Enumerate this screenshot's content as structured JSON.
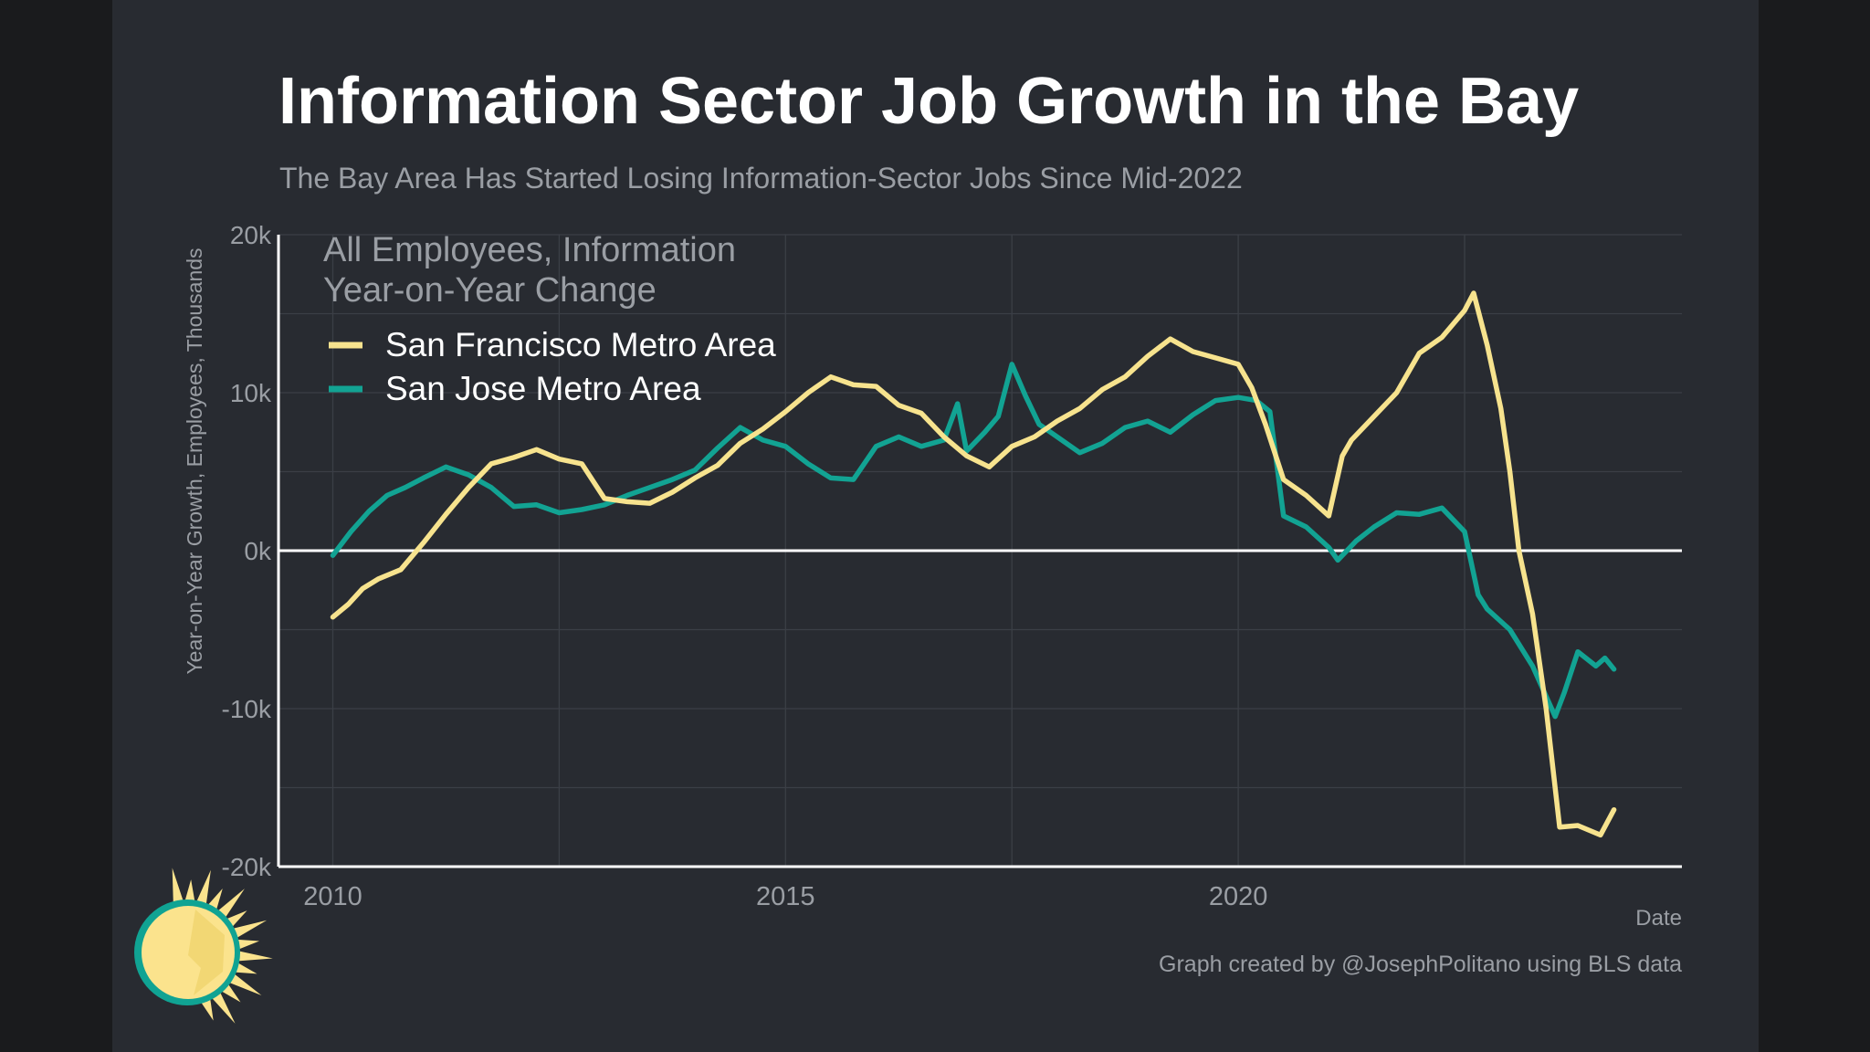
{
  "colors": {
    "background": "#282b31",
    "outer": "#1a1b1d",
    "grid": "#3b3f46",
    "zero_line": "#ffffff",
    "axis": "#ffffff",
    "text_muted": "#9a9ea4",
    "sf": "#f7e38e",
    "sj": "#12a393",
    "logo_sun": "#fbe38d",
    "logo_ring": "#10a393"
  },
  "chart_data": {
    "type": "line",
    "title": "Information Sector Job Growth in the Bay",
    "subtitle": "The Bay Area Has Started Losing Information-Sector Jobs Since Mid-2022",
    "xlabel": "Date",
    "ylabel": "Year-on-Year Growth, Employees, Thousands",
    "caption": "Graph created by @JosephPolitano using BLS data",
    "xlim": [
      2009.4,
      2024.9
    ],
    "ylim": [
      -20,
      20
    ],
    "x_ticks": [
      2010,
      2015,
      2020
    ],
    "x_tick_labels": [
      "2010",
      "2015",
      "2020"
    ],
    "y_ticks": [
      20,
      10,
      0,
      -10,
      -20
    ],
    "y_tick_labels": [
      "20k",
      "10k",
      "0k",
      "-10k",
      "-20k"
    ],
    "x_gridlines": [
      2010,
      2012.5,
      2015,
      2017.5,
      2020,
      2022.5
    ],
    "y_gridlines": [
      20,
      15,
      10,
      5,
      -5,
      -10,
      -15
    ],
    "legend": {
      "title_line1": "All Employees, Information",
      "title_line2": "Year-on-Year Change",
      "placement": "top-left"
    },
    "series": [
      {
        "name": "San Francisco Metro Area",
        "color": "#f7e38e",
        "x": [
          2010.0,
          2010.17,
          2010.33,
          2010.5,
          2010.75,
          2011.0,
          2011.25,
          2011.5,
          2011.75,
          2012.0,
          2012.25,
          2012.5,
          2012.75,
          2013.0,
          2013.25,
          2013.5,
          2013.75,
          2014.0,
          2014.25,
          2014.5,
          2014.75,
          2015.0,
          2015.25,
          2015.5,
          2015.75,
          2016.0,
          2016.25,
          2016.5,
          2016.75,
          2017.0,
          2017.25,
          2017.5,
          2017.75,
          2018.0,
          2018.25,
          2018.5,
          2018.75,
          2019.0,
          2019.25,
          2019.5,
          2019.75,
          2020.0,
          2020.15,
          2020.3,
          2020.5,
          2020.75,
          2021.0,
          2021.15,
          2021.25,
          2021.5,
          2021.75,
          2022.0,
          2022.25,
          2022.5,
          2022.6,
          2022.75,
          2022.9,
          2023.0,
          2023.1,
          2023.25,
          2023.4,
          2023.55,
          2023.75,
          2024.0,
          2024.15
        ],
        "values": [
          -4.2,
          -3.4,
          -2.4,
          -1.8,
          -1.2,
          0.5,
          2.3,
          4.0,
          5.5,
          5.9,
          6.4,
          5.8,
          5.5,
          3.3,
          3.1,
          3.0,
          3.7,
          4.6,
          5.4,
          6.8,
          7.7,
          8.8,
          10.0,
          11.0,
          10.5,
          10.4,
          9.2,
          8.7,
          7.2,
          6.0,
          5.3,
          6.6,
          7.2,
          8.2,
          9.0,
          10.2,
          11.0,
          12.3,
          13.4,
          12.6,
          12.2,
          11.8,
          10.3,
          8.0,
          4.5,
          3.5,
          2.2,
          6.0,
          7.0,
          8.5,
          10.0,
          12.5,
          13.5,
          15.2,
          16.3,
          13.0,
          9.0,
          5.0,
          0.0,
          -4.0,
          -10.0,
          -17.5,
          -17.4,
          -18.0,
          -16.4
        ]
      },
      {
        "name": "San Jose Metro Area",
        "color": "#12a393",
        "x": [
          2010.0,
          2010.2,
          2010.4,
          2010.6,
          2010.8,
          2011.0,
          2011.25,
          2011.5,
          2011.75,
          2012.0,
          2012.25,
          2012.5,
          2012.75,
          2013.0,
          2013.25,
          2013.5,
          2013.75,
          2014.0,
          2014.25,
          2014.5,
          2014.75,
          2015.0,
          2015.25,
          2015.5,
          2015.75,
          2016.0,
          2016.25,
          2016.5,
          2016.75,
          2016.9,
          2017.0,
          2017.2,
          2017.35,
          2017.5,
          2017.65,
          2017.8,
          2018.0,
          2018.25,
          2018.5,
          2018.75,
          2019.0,
          2019.25,
          2019.5,
          2019.75,
          2020.0,
          2020.2,
          2020.35,
          2020.5,
          2020.75,
          2021.0,
          2021.1,
          2021.3,
          2021.5,
          2021.75,
          2022.0,
          2022.25,
          2022.5,
          2022.65,
          2022.75,
          2023.0,
          2023.25,
          2023.5,
          2023.6,
          2023.75,
          2023.95,
          2024.05,
          2024.15
        ],
        "values": [
          -0.3,
          1.2,
          2.5,
          3.5,
          4.0,
          4.6,
          5.3,
          4.8,
          4.0,
          2.8,
          2.9,
          2.4,
          2.6,
          2.9,
          3.5,
          4.0,
          4.5,
          5.1,
          6.5,
          7.8,
          7.0,
          6.6,
          5.5,
          4.6,
          4.5,
          6.6,
          7.2,
          6.6,
          7.0,
          9.3,
          6.3,
          7.5,
          8.5,
          11.8,
          9.8,
          8.0,
          7.2,
          6.2,
          6.8,
          7.8,
          8.2,
          7.5,
          8.6,
          9.5,
          9.7,
          9.5,
          8.8,
          2.2,
          1.5,
          0.2,
          -0.6,
          0.6,
          1.5,
          2.4,
          2.3,
          2.7,
          1.2,
          -2.8,
          -3.7,
          -5.0,
          -7.3,
          -10.5,
          -9.0,
          -6.4,
          -7.3,
          -6.8,
          -7.5
        ]
      }
    ]
  }
}
